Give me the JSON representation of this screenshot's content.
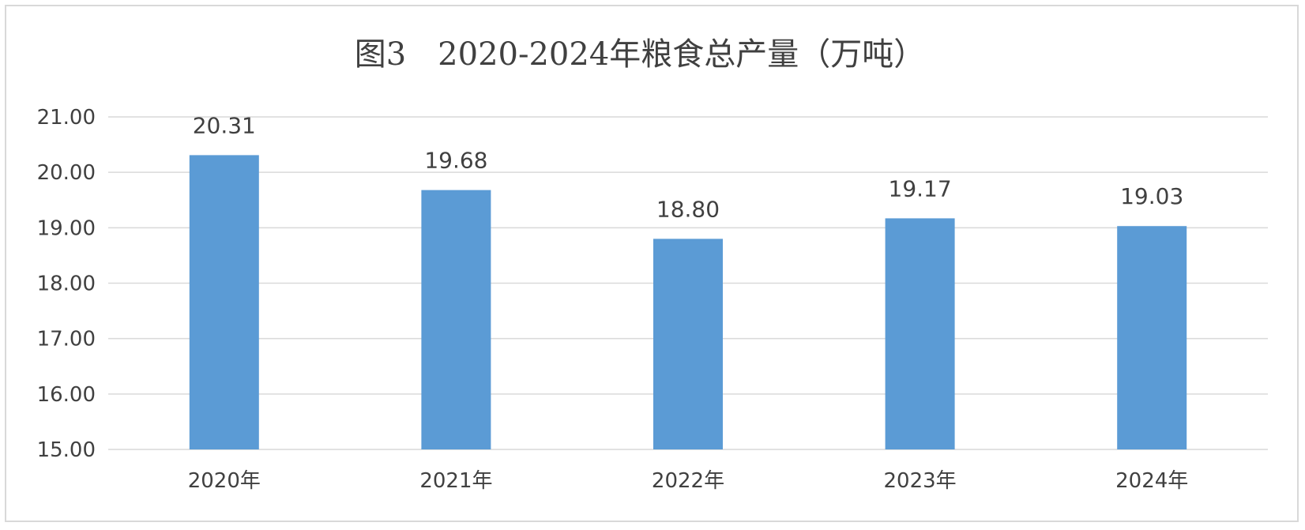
{
  "chart_data": {
    "type": "bar",
    "title": "图3　2020-2024年粮食总产量（万吨）",
    "categories": [
      "2020年",
      "2021年",
      "2022年",
      "2023年",
      "2024年"
    ],
    "values": [
      20.31,
      19.68,
      18.8,
      19.17,
      19.03
    ],
    "value_labels": [
      "20.31",
      "19.68",
      "18.80",
      "19.17",
      "19.03"
    ],
    "ylim": [
      15,
      21
    ],
    "yticks": [
      15,
      16,
      17,
      18,
      19,
      20,
      21
    ],
    "ytick_labels": [
      "15.00",
      "16.00",
      "17.00",
      "18.00",
      "19.00",
      "20.00",
      "21.00"
    ],
    "xlabel": "",
    "ylabel": "",
    "grid": true,
    "legend": "none",
    "bar_color": "#5b9bd5"
  }
}
